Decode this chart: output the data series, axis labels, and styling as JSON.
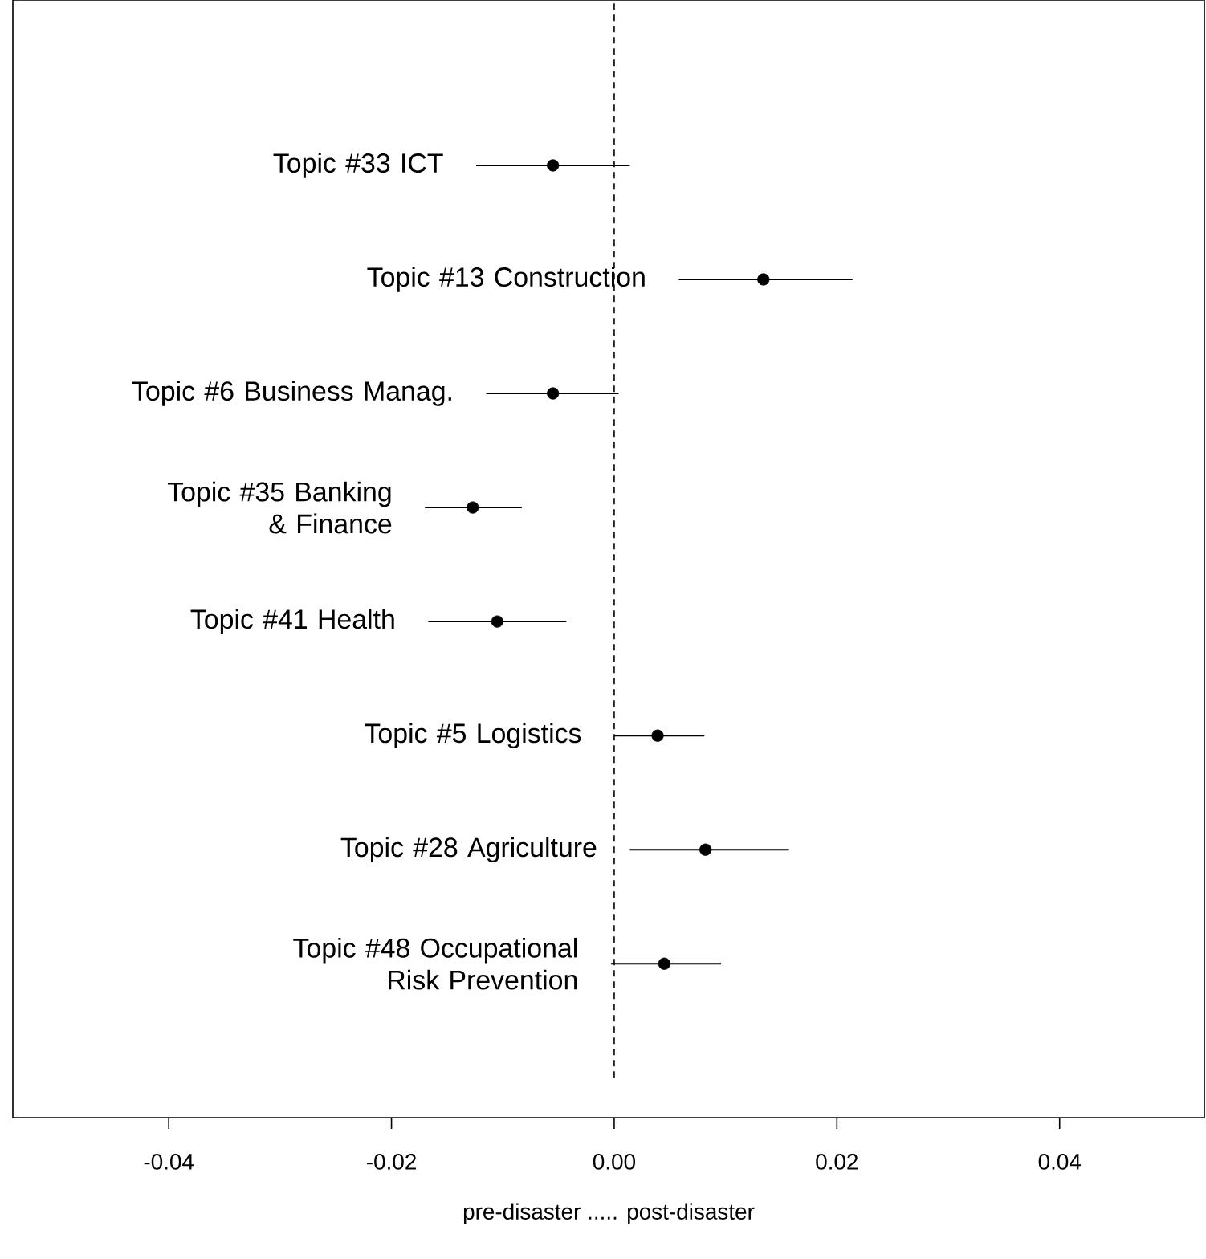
{
  "chart_data": {
    "type": "scatter",
    "orientation": "horizontal",
    "xlabel": "pre-disaster ..... post-disaster",
    "categories": [
      "Topic #33 ICT",
      "Topic #13 Construction",
      "Topic #6 Business Manag.",
      "Topic #35 Banking & Finance",
      "Topic #41 Health",
      "Topic #5 Logistics",
      "Topic #28 Agriculture",
      "Topic #48 Occupational Risk Prevention"
    ],
    "values": [
      -0.0055,
      0.0134,
      -0.0055,
      -0.0127,
      -0.0105,
      0.0039,
      0.0082,
      0.0045
    ],
    "errors": [
      [
        -0.0124,
        0.0014
      ],
      [
        0.0058,
        0.0214
      ],
      [
        -0.0115,
        0.0004
      ],
      [
        -0.017,
        -0.0083
      ],
      [
        -0.0167,
        -0.0043
      ],
      [
        0.0,
        0.0081
      ],
      [
        0.0014,
        0.0157
      ],
      [
        -0.0003,
        0.0096
      ]
    ],
    "color": "#000000",
    "marker": "circle",
    "xlim": [
      -0.054,
      0.053
    ],
    "xticks": [
      {
        "value": -0.04,
        "label": "-0.04"
      },
      {
        "value": -0.02,
        "label": "-0.02"
      },
      {
        "value": 0,
        "label": "0.00"
      },
      {
        "value": 0.02,
        "label": "0.02"
      },
      {
        "value": 0.04,
        "label": "0.04"
      }
    ],
    "ref_lines": [
      {
        "axis": "x",
        "value": 0,
        "line_style": "dashed",
        "color": "#000000"
      }
    ],
    "tick_labels": "x",
    "grid": false
  }
}
